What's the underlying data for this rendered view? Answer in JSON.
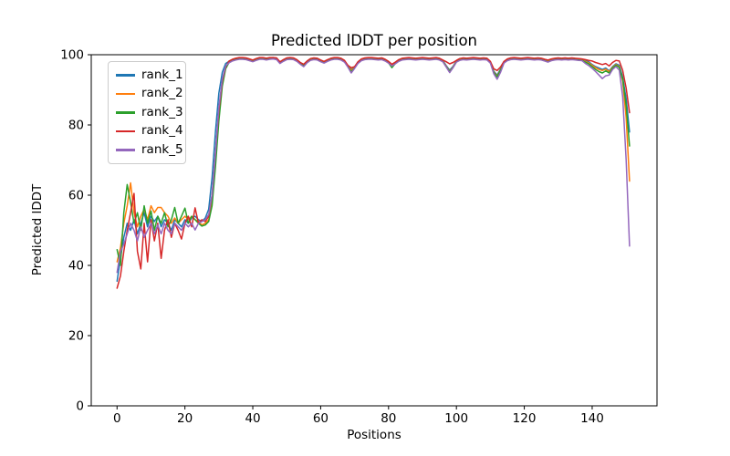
{
  "figure": {
    "background": "#ffffff",
    "frame_color": "#000000"
  },
  "chart_data": {
    "type": "line",
    "title": "Predicted lDDT per position",
    "xlabel": "Positions",
    "ylabel": "Predicted lDDT",
    "x_ticks": [
      0,
      20,
      40,
      60,
      80,
      100,
      120,
      140
    ],
    "y_ticks": [
      0,
      20,
      40,
      60,
      80,
      100
    ],
    "xlim": [
      -7.6,
      159.1
    ],
    "ylim": [
      0,
      100
    ],
    "grid": false,
    "legend_position": "upper-left",
    "line_width": 1.5,
    "series": [
      {
        "name": "rank_1",
        "color": "#1f77b4",
        "values": [
          35.5,
          42,
          48,
          52,
          50,
          53,
          49,
          52,
          55,
          51,
          54,
          52.5,
          54,
          51,
          53,
          52,
          50,
          53,
          52,
          51,
          53,
          52,
          53.5,
          54,
          53,
          52.5,
          53.5,
          56,
          65,
          78,
          89,
          95,
          97.5,
          98.1,
          98.6,
          98.9,
          99.1,
          99.1,
          99.0,
          98.7,
          98.4,
          98.8,
          99.1,
          99.1,
          98.9,
          99.1,
          99.2,
          99.0,
          97.9,
          98.5,
          99.0,
          99.1,
          99.0,
          98.5,
          97.7,
          97.2,
          98.1,
          98.8,
          99.0,
          98.9,
          98.4,
          98.0,
          98.5,
          98.9,
          99.1,
          99.1,
          98.9,
          98.3,
          96.9,
          95.8,
          96.5,
          97.9,
          98.7,
          99.0,
          99.1,
          99.1,
          99.0,
          98.9,
          99.0,
          98.6,
          98.0,
          97.2,
          97.8,
          98.5,
          98.9,
          99.0,
          99.1,
          99.0,
          98.9,
          99.0,
          99.1,
          99.0,
          98.9,
          99.0,
          99.1,
          98.9,
          98.4,
          96.9,
          95.6,
          96.7,
          98.3,
          98.8,
          99.0,
          98.9,
          99.0,
          99.1,
          99.0,
          98.9,
          99.0,
          98.9,
          98.0,
          95.3,
          94.2,
          95.9,
          98.0,
          98.7,
          99.0,
          99.1,
          99.0,
          98.9,
          99.0,
          99.1,
          99.0,
          98.9,
          99.0,
          98.9,
          98.6,
          98.4,
          98.7,
          98.9,
          99.0,
          98.9,
          99.0,
          98.9,
          99.0,
          98.9,
          98.8,
          98.7,
          98.4,
          98.0,
          97.2,
          96.6,
          96.2,
          95.8,
          96.2,
          95.4,
          96.6,
          97.4,
          97.0,
          93.5,
          87.5,
          78.0
        ]
      },
      {
        "name": "rank_2",
        "color": "#ff7f0e",
        "values": [
          41,
          45,
          52,
          57,
          63.5,
          55,
          51,
          54,
          56,
          53,
          57,
          55,
          56.5,
          56.5,
          55,
          54,
          52,
          53.5,
          52,
          53,
          54,
          53,
          54,
          53,
          52.5,
          51.5,
          52,
          53,
          58,
          70,
          83,
          92,
          96.5,
          97.9,
          98.4,
          98.7,
          98.9,
          98.9,
          98.8,
          98.5,
          98.2,
          98.6,
          98.9,
          98.9,
          98.7,
          98.9,
          99.0,
          98.8,
          97.7,
          98.3,
          98.8,
          98.9,
          98.8,
          98.3,
          97.5,
          97.0,
          97.9,
          98.6,
          98.8,
          98.7,
          98.2,
          97.8,
          98.3,
          98.7,
          98.9,
          98.9,
          98.7,
          98.1,
          96.7,
          95.6,
          96.3,
          97.7,
          98.5,
          98.8,
          98.9,
          98.9,
          98.8,
          98.7,
          98.8,
          98.4,
          97.8,
          97.0,
          97.6,
          98.3,
          98.7,
          98.8,
          98.9,
          98.8,
          98.7,
          98.8,
          98.9,
          98.8,
          98.7,
          98.8,
          98.9,
          98.7,
          98.2,
          96.7,
          95.3,
          96.5,
          98.1,
          98.6,
          98.8,
          98.7,
          98.8,
          98.9,
          98.8,
          98.7,
          98.8,
          98.7,
          97.8,
          95.1,
          93.9,
          95.7,
          97.8,
          98.5,
          98.8,
          98.9,
          98.8,
          98.7,
          98.8,
          98.9,
          98.8,
          98.7,
          98.8,
          98.7,
          98.4,
          98.2,
          98.5,
          98.7,
          98.8,
          98.7,
          98.8,
          98.7,
          98.8,
          98.7,
          98.6,
          98.5,
          98.1,
          97.7,
          97.0,
          96.3,
          95.8,
          95.5,
          95.9,
          95.2,
          96.4,
          97.2,
          96.6,
          92.5,
          82.0,
          64.0
        ]
      },
      {
        "name": "rank_3",
        "color": "#2ca02c",
        "values": [
          44.5,
          40,
          55,
          63,
          58,
          52,
          55,
          50,
          57,
          52,
          55.5,
          50,
          54,
          52,
          55,
          51,
          53,
          56.5,
          52,
          54,
          56.3,
          52,
          54,
          53,
          52,
          51.2,
          51.5,
          52.5,
          57,
          68,
          81,
          91,
          96,
          97.8,
          98.3,
          98.6,
          98.8,
          98.8,
          98.7,
          98.4,
          98.1,
          98.5,
          98.8,
          98.8,
          98.6,
          98.8,
          98.9,
          98.7,
          97.6,
          98.2,
          98.7,
          98.8,
          98.7,
          98.2,
          97.4,
          96.9,
          97.8,
          98.5,
          98.7,
          98.6,
          98.1,
          97.7,
          98.2,
          98.6,
          98.8,
          98.8,
          98.6,
          98.0,
          96.6,
          95.2,
          96.2,
          97.6,
          98.4,
          98.7,
          98.8,
          98.8,
          98.7,
          98.6,
          98.7,
          98.3,
          97.7,
          96.3,
          97.5,
          98.2,
          98.6,
          98.7,
          98.8,
          98.7,
          98.6,
          98.7,
          98.8,
          98.7,
          98.6,
          98.7,
          98.8,
          98.6,
          98.1,
          96.6,
          95.2,
          96.4,
          98.0,
          98.5,
          98.7,
          98.6,
          98.7,
          98.8,
          98.7,
          98.6,
          98.7,
          98.6,
          97.7,
          95.0,
          93.7,
          95.6,
          97.7,
          98.4,
          98.7,
          98.8,
          98.7,
          98.6,
          98.7,
          98.8,
          98.7,
          98.6,
          98.7,
          98.6,
          98.3,
          98.0,
          98.4,
          98.6,
          98.7,
          98.6,
          98.7,
          98.6,
          98.7,
          98.6,
          98.5,
          98.4,
          97.9,
          97.4,
          96.6,
          95.8,
          95.2,
          94.8,
          95.4,
          94.8,
          96.2,
          97.0,
          96.4,
          93.0,
          85.5,
          74.0
        ]
      },
      {
        "name": "rank_4",
        "color": "#d62728",
        "values": [
          33.5,
          37,
          44,
          50,
          55,
          60.5,
          44,
          39,
          52,
          41,
          53,
          47,
          52,
          42,
          50,
          53,
          48,
          52,
          50,
          47.5,
          52,
          54,
          51,
          56.4,
          52,
          53,
          52.5,
          54,
          60,
          72,
          84,
          92.5,
          96.5,
          98.2,
          98.7,
          99.0,
          99.2,
          99.2,
          99.1,
          98.8,
          98.5,
          98.9,
          99.2,
          99.2,
          99.0,
          99.2,
          99.2,
          99.1,
          98.0,
          98.6,
          99.1,
          99.2,
          99.1,
          98.6,
          97.8,
          97.3,
          98.2,
          98.9,
          99.1,
          99.0,
          98.5,
          98.1,
          98.6,
          99.0,
          99.2,
          99.2,
          99.0,
          98.4,
          97.0,
          96.3,
          96.6,
          98.0,
          98.8,
          99.1,
          99.2,
          99.2,
          99.1,
          99.0,
          99.1,
          98.7,
          98.1,
          97.3,
          97.9,
          98.6,
          99.0,
          99.1,
          99.2,
          99.1,
          99.0,
          99.1,
          99.2,
          99.1,
          99.0,
          99.1,
          99.2,
          99.0,
          98.5,
          98.0,
          97.4,
          97.8,
          98.4,
          98.9,
          99.1,
          99.0,
          99.1,
          99.2,
          99.1,
          99.0,
          99.1,
          99.0,
          98.1,
          96.0,
          95.5,
          96.5,
          98.1,
          98.8,
          99.1,
          99.2,
          99.1,
          99.0,
          99.1,
          99.2,
          99.1,
          99.0,
          99.1,
          99.0,
          98.7,
          98.5,
          98.8,
          99.0,
          99.1,
          99.0,
          99.1,
          99.0,
          99.1,
          99.0,
          98.9,
          98.8,
          98.6,
          98.4,
          98.2,
          97.8,
          97.5,
          97.2,
          97.5,
          96.8,
          97.8,
          98.4,
          98.2,
          95.5,
          90.5,
          83.5
        ]
      },
      {
        "name": "rank_5",
        "color": "#9467bd",
        "values": [
          38,
          44,
          46,
          49,
          52,
          50,
          47,
          51,
          48,
          50,
          52,
          49,
          51.5,
          49,
          52,
          50,
          49,
          52,
          51,
          50,
          52,
          51,
          52,
          50.1,
          52,
          52.5,
          53,
          54.5,
          60,
          72,
          85,
          93,
          96.8,
          97.7,
          98.2,
          98.5,
          98.7,
          98.7,
          98.6,
          98.3,
          98.0,
          98.4,
          98.7,
          98.7,
          98.5,
          98.7,
          98.8,
          98.6,
          97.5,
          98.1,
          98.6,
          98.7,
          98.6,
          98.1,
          97.3,
          96.6,
          97.7,
          98.4,
          98.6,
          98.5,
          98.0,
          97.6,
          98.1,
          98.5,
          98.7,
          98.7,
          98.5,
          97.9,
          96.5,
          94.8,
          96.1,
          97.5,
          98.3,
          98.6,
          98.7,
          98.7,
          98.6,
          98.5,
          98.6,
          98.2,
          97.6,
          96.8,
          97.4,
          98.1,
          98.5,
          98.6,
          98.7,
          98.6,
          98.5,
          98.6,
          98.7,
          98.6,
          98.5,
          98.6,
          98.7,
          98.5,
          98.0,
          96.5,
          94.9,
          96.3,
          97.9,
          98.4,
          98.6,
          98.5,
          98.6,
          98.7,
          98.6,
          98.5,
          98.6,
          98.5,
          97.6,
          94.6,
          93.0,
          95.0,
          97.6,
          98.3,
          98.6,
          98.7,
          98.6,
          98.5,
          98.6,
          98.7,
          98.6,
          98.5,
          98.6,
          98.5,
          98.2,
          97.9,
          98.3,
          98.5,
          98.6,
          98.5,
          98.6,
          98.5,
          98.6,
          98.5,
          98.4,
          98.3,
          97.5,
          96.9,
          96.1,
          95.2,
          94.2,
          93.2,
          94.0,
          94.2,
          95.8,
          96.6,
          95.6,
          88.0,
          70.0,
          45.5
        ]
      }
    ]
  }
}
